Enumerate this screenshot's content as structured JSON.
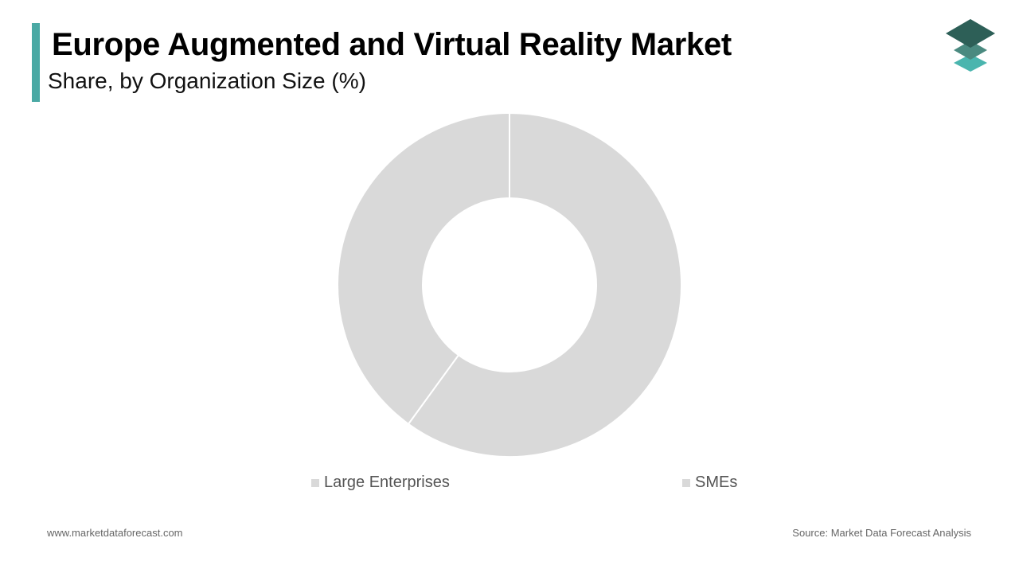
{
  "header": {
    "title": "Europe Augmented and Virtual Reality Market",
    "subtitle": "Share, by Organization Size (%)"
  },
  "footer": {
    "website": "www.marketdataforecast.com",
    "source": "Source: Market Data Forecast Analysis"
  },
  "colors": {
    "accent": "#4aa9a4",
    "slice_fill": "#d9d9d9",
    "slice_border": "#ffffff",
    "logo_dark": "#2d5f57",
    "logo_mid": "#4a8a80",
    "logo_light": "#4ab5ae"
  },
  "logo": {
    "icon": "stacked-layers-icon"
  },
  "chart_data": {
    "type": "pie",
    "style": "donut",
    "categories": [
      "Large Enterprises",
      "SMEs"
    ],
    "values": [
      60,
      40
    ],
    "legend": [
      "Large Enterprises",
      "SMEs"
    ],
    "legend_position": "bottom"
  }
}
